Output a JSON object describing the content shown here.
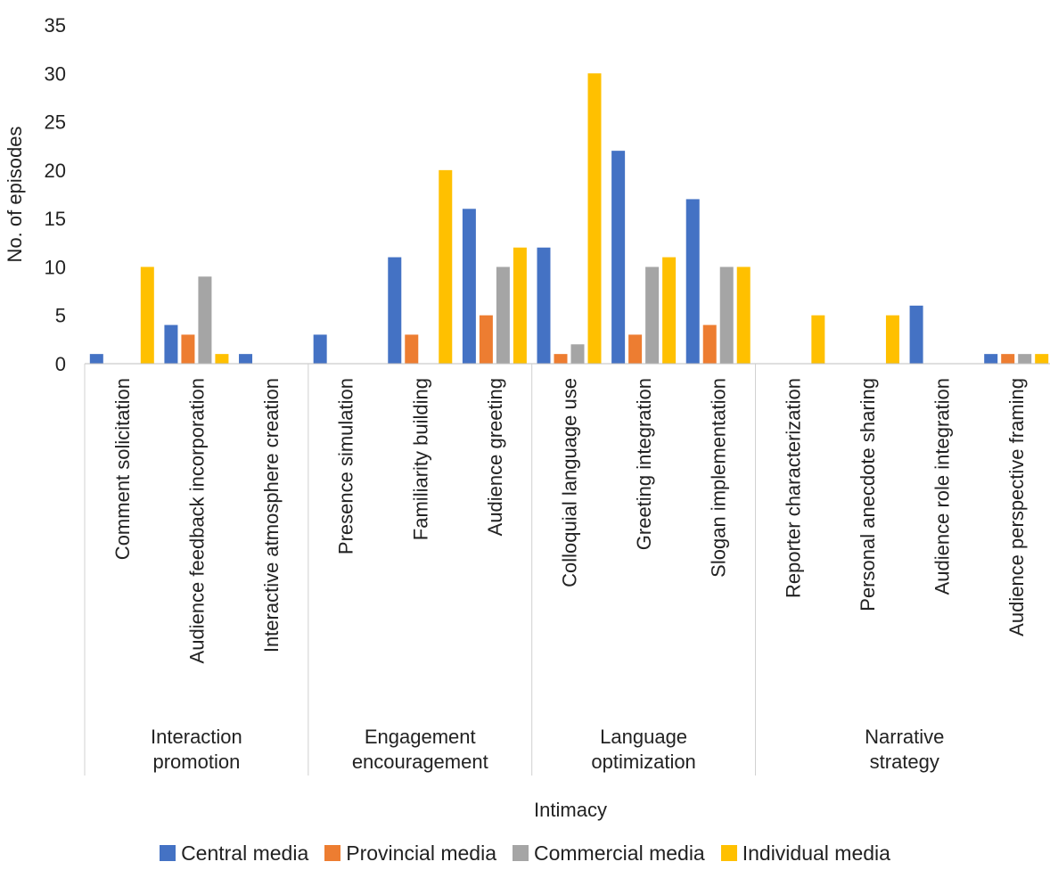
{
  "chart_data": {
    "type": "bar",
    "title": "",
    "xlabel": "Intimacy",
    "ylabel": "No. of episodes",
    "ylim": [
      0,
      35
    ],
    "yticks": [
      0,
      5,
      10,
      15,
      20,
      25,
      30,
      35
    ],
    "grid": false,
    "legend_position": "bottom",
    "groups": [
      {
        "label": "Interaction promotion",
        "lines": [
          "Interaction",
          "promotion"
        ],
        "size": 3
      },
      {
        "label": "Engagement encouragement",
        "lines": [
          "Engagement",
          "encouragement"
        ],
        "size": 3
      },
      {
        "label": "Language optimization",
        "lines": [
          "Language",
          "optimization"
        ],
        "size": 3
      },
      {
        "label": "Narrative strategy",
        "lines": [
          "Narrative",
          "strategy"
        ],
        "size": 4
      }
    ],
    "categories": [
      "Comment solicitation",
      "Audience feedback incorporation",
      "Interactive atmosphere creation",
      "Presence simulation",
      "Familiarity building",
      "Audience greeting",
      "Colloquial language use",
      "Greeting integration",
      "Slogan implementation",
      "Reporter characterization",
      "Personal anecdote sharing",
      "Audience role integration",
      "Audience perspective framing"
    ],
    "series": [
      {
        "name": "Central media",
        "color": "#4472C4",
        "values": [
          1,
          4,
          1,
          3,
          11,
          16,
          12,
          22,
          17,
          0,
          0,
          6,
          1
        ]
      },
      {
        "name": "Provincial media",
        "color": "#ED7D31",
        "values": [
          0,
          3,
          0,
          0,
          3,
          5,
          1,
          3,
          4,
          0,
          0,
          0,
          1
        ]
      },
      {
        "name": "Commercial media",
        "color": "#A5A5A5",
        "values": [
          0,
          9,
          0,
          0,
          0,
          10,
          2,
          10,
          10,
          0,
          0,
          0,
          1
        ]
      },
      {
        "name": "Individual media",
        "color": "#FFC000",
        "values": [
          10,
          1,
          0,
          0,
          20,
          12,
          30,
          11,
          10,
          5,
          5,
          0,
          1
        ]
      }
    ]
  }
}
